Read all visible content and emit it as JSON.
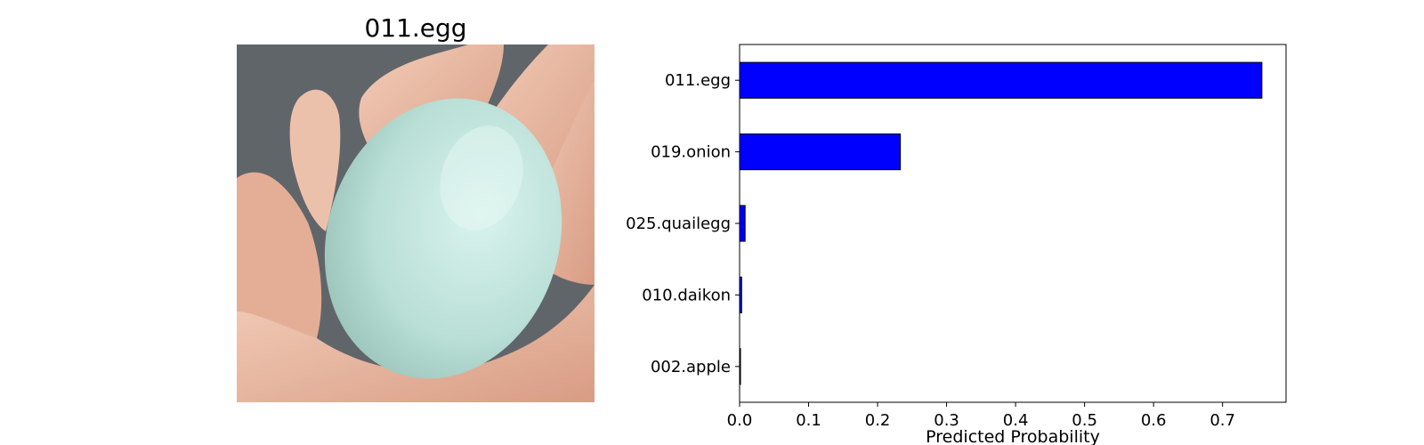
{
  "image_panel": {
    "title": "011.egg",
    "photo_subject": "blue-green egg held in an open hand"
  },
  "colors": {
    "bar_fill": "#0000ff",
    "bar_edge": "#000000",
    "background_photo": "#5b6064",
    "egg": "#bfe3da",
    "hand": "#e9b9a2"
  },
  "chart_data": {
    "type": "bar",
    "orientation": "horizontal",
    "categories": [
      "011.egg",
      "019.onion",
      "025.quailegg",
      "010.daikon",
      "002.apple"
    ],
    "values": [
      0.757,
      0.233,
      0.008,
      0.003,
      0.001
    ],
    "xlabel": "Predicted Probability",
    "ylabel": "",
    "xlim": [
      0,
      0.792
    ],
    "xticks": [
      0.0,
      0.1,
      0.2,
      0.3,
      0.4,
      0.5,
      0.6,
      0.7
    ],
    "xtick_labels": [
      "0.0",
      "0.1",
      "0.2",
      "0.3",
      "0.4",
      "0.5",
      "0.6",
      "0.7"
    ],
    "grid": false,
    "legend": "none"
  }
}
